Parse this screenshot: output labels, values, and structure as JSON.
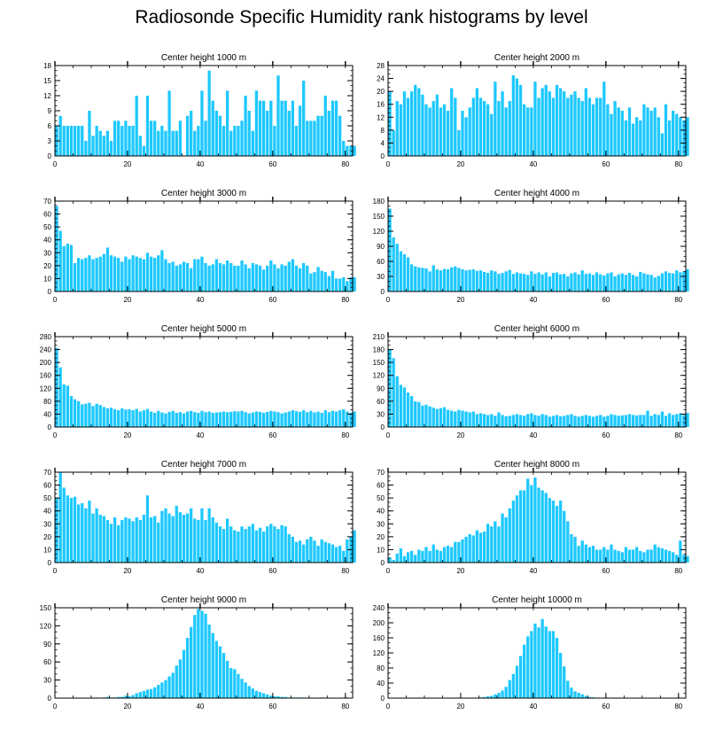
{
  "title": "Radiosonde Specific Humidity rank histograms by level",
  "colors": {
    "bar": "#1ec8ff",
    "axis": "#000000"
  },
  "chart_data": [
    {
      "type": "bar",
      "title": "Center height 1000 m",
      "xlim": [
        0,
        82
      ],
      "ylim": [
        0,
        18
      ],
      "yticks": [
        0,
        3,
        6,
        9,
        12,
        15,
        18
      ],
      "xticks": [
        0,
        20,
        40,
        60,
        80
      ],
      "values": [
        6,
        8,
        6,
        6,
        6,
        6,
        6,
        6,
        3,
        9,
        4,
        6,
        5,
        4,
        5,
        3,
        7,
        7,
        6,
        7,
        6,
        6,
        12,
        4,
        2,
        12,
        7,
        7,
        5,
        6,
        5,
        13,
        5,
        5,
        7,
        0,
        8,
        9,
        5,
        6,
        13,
        7,
        17,
        11,
        9,
        8,
        6,
        13,
        5,
        6,
        6,
        7,
        12,
        9,
        5,
        13,
        11,
        11,
        9,
        11,
        6,
        16,
        11,
        11,
        9,
        11,
        6,
        10,
        15,
        7,
        7,
        7,
        8,
        8,
        12,
        9,
        11,
        11,
        8,
        3,
        2,
        2,
        2
      ]
    },
    {
      "type": "bar",
      "title": "Center height 2000 m",
      "xlim": [
        0,
        82
      ],
      "ylim": [
        0,
        28
      ],
      "yticks": [
        0,
        4,
        8,
        12,
        16,
        20,
        24,
        28
      ],
      "xticks": [
        0,
        20,
        40,
        60,
        80
      ],
      "values": [
        20,
        8,
        17,
        16,
        20,
        18,
        20,
        22,
        21,
        19,
        16,
        15,
        17,
        19,
        15,
        16,
        14,
        21,
        18,
        8,
        14,
        12,
        15,
        18,
        21,
        18,
        17,
        16,
        13,
        23,
        17,
        20,
        15,
        17,
        25,
        24,
        22,
        16,
        15,
        15,
        23,
        18,
        21,
        22,
        20,
        18,
        22,
        21,
        20,
        18,
        19,
        20,
        18,
        17,
        21,
        18,
        16,
        18,
        18,
        23,
        16,
        13,
        17,
        15,
        14,
        11,
        15,
        10,
        12,
        11,
        16,
        15,
        14,
        15,
        12,
        7,
        16,
        11,
        14,
        13,
        12,
        11,
        12
      ]
    },
    {
      "type": "bar",
      "title": "Center height 3000 m",
      "xlim": [
        0,
        82
      ],
      "ylim": [
        0,
        70
      ],
      "yticks": [
        0,
        10,
        20,
        30,
        40,
        50,
        60,
        70
      ],
      "xticks": [
        0,
        20,
        40,
        60,
        80
      ],
      "values": [
        66,
        47,
        35,
        37,
        36,
        22,
        26,
        25,
        26,
        28,
        25,
        26,
        27,
        29,
        34,
        28,
        27,
        26,
        23,
        27,
        25,
        28,
        27,
        26,
        25,
        30,
        27,
        26,
        28,
        32,
        25,
        22,
        23,
        20,
        21,
        23,
        22,
        18,
        25,
        25,
        27,
        22,
        20,
        21,
        25,
        22,
        21,
        24,
        22,
        20,
        20,
        24,
        21,
        18,
        22,
        21,
        20,
        17,
        20,
        24,
        21,
        18,
        21,
        20,
        23,
        25,
        20,
        18,
        22,
        20,
        14,
        15,
        19,
        16,
        15,
        12,
        16,
        10,
        10,
        11,
        8,
        11,
        11
      ]
    },
    {
      "type": "bar",
      "title": "Center height 4000 m",
      "xlim": [
        0,
        82
      ],
      "ylim": [
        0,
        180
      ],
      "yticks": [
        0,
        30,
        60,
        90,
        120,
        150,
        180
      ],
      "xticks": [
        0,
        20,
        40,
        60,
        80
      ],
      "values": [
        165,
        108,
        95,
        80,
        74,
        68,
        54,
        50,
        48,
        47,
        46,
        40,
        52,
        44,
        42,
        45,
        44,
        48,
        50,
        47,
        44,
        42,
        43,
        44,
        41,
        42,
        39,
        37,
        42,
        40,
        35,
        37,
        40,
        43,
        35,
        38,
        36,
        35,
        33,
        40,
        35,
        38,
        34,
        38,
        30,
        37,
        38,
        34,
        35,
        30,
        36,
        38,
        34,
        42,
        35,
        36,
        33,
        38,
        34,
        32,
        36,
        38,
        30,
        34,
        36,
        33,
        37,
        33,
        30,
        39,
        36,
        34,
        33,
        28,
        31,
        36,
        40,
        37,
        36,
        42,
        38,
        40,
        44
      ]
    },
    {
      "type": "bar",
      "title": "Center height 5000 m",
      "xlim": [
        0,
        82
      ],
      "ylim": [
        0,
        280
      ],
      "yticks": [
        0,
        40,
        80,
        120,
        160,
        200,
        240,
        280
      ],
      "xticks": [
        0,
        20,
        40,
        60,
        80
      ],
      "values": [
        245,
        185,
        132,
        128,
        96,
        86,
        80,
        70,
        72,
        75,
        65,
        72,
        68,
        62,
        58,
        60,
        55,
        52,
        58,
        54,
        55,
        52,
        56,
        48,
        52,
        56,
        48,
        44,
        50,
        45,
        42,
        47,
        50,
        44,
        46,
        42,
        48,
        50,
        46,
        44,
        50,
        46,
        48,
        44,
        45,
        46,
        48,
        46,
        47,
        49,
        48,
        50,
        46,
        42,
        45,
        48,
        47,
        44,
        47,
        50,
        48,
        46,
        42,
        45,
        48,
        52,
        49,
        47,
        52,
        46,
        50,
        45,
        48,
        44,
        52,
        46,
        50,
        48,
        52,
        55,
        48,
        44,
        48
      ]
    },
    {
      "type": "bar",
      "title": "Center height 6000 m",
      "xlim": [
        0,
        82
      ],
      "ylim": [
        0,
        210
      ],
      "yticks": [
        0,
        30,
        60,
        90,
        120,
        150,
        180,
        210
      ],
      "xticks": [
        0,
        20,
        40,
        60,
        80
      ],
      "values": [
        180,
        160,
        118,
        98,
        92,
        80,
        72,
        60,
        58,
        50,
        52,
        48,
        45,
        42,
        44,
        46,
        40,
        38,
        36,
        40,
        38,
        36,
        34,
        36,
        30,
        32,
        30,
        28,
        30,
        26,
        34,
        28,
        25,
        26,
        28,
        30,
        28,
        26,
        30,
        32,
        28,
        26,
        30,
        28,
        24,
        26,
        28,
        25,
        26,
        28,
        30,
        26,
        24,
        26,
        28,
        26,
        24,
        26,
        28,
        24,
        26,
        30,
        28,
        26,
        27,
        28,
        30,
        28,
        27,
        28,
        28,
        38,
        26,
        30,
        28,
        36,
        26,
        32,
        28,
        30,
        32,
        28,
        33
      ]
    },
    {
      "type": "bar",
      "title": "Center height 7000 m",
      "xlim": [
        0,
        82
      ],
      "ylim": [
        0,
        70
      ],
      "yticks": [
        0,
        10,
        20,
        30,
        40,
        50,
        60,
        70
      ],
      "xticks": [
        0,
        20,
        40,
        60,
        80
      ],
      "values": [
        50,
        70,
        58,
        52,
        50,
        51,
        45,
        46,
        42,
        48,
        38,
        42,
        37,
        36,
        33,
        30,
        35,
        29,
        33,
        35,
        34,
        32,
        35,
        33,
        37,
        52,
        35,
        36,
        31,
        40,
        42,
        38,
        36,
        44,
        39,
        37,
        38,
        42,
        34,
        33,
        42,
        33,
        42,
        35,
        31,
        28,
        26,
        34,
        28,
        25,
        24,
        28,
        26,
        28,
        30,
        25,
        27,
        24,
        28,
        30,
        28,
        26,
        29,
        28,
        22,
        20,
        16,
        17,
        14,
        18,
        20,
        17,
        13,
        18,
        16,
        15,
        14,
        12,
        13,
        9,
        18,
        20,
        25
      ]
    },
    {
      "type": "bar",
      "title": "Center height 8000 m",
      "xlim": [
        0,
        82
      ],
      "ylim": [
        0,
        70
      ],
      "yticks": [
        0,
        10,
        20,
        30,
        40,
        50,
        60,
        70
      ],
      "xticks": [
        0,
        20,
        40,
        60,
        80
      ],
      "values": [
        4,
        2,
        7,
        11,
        5,
        8,
        9,
        6,
        10,
        9,
        12,
        9,
        14,
        10,
        9,
        12,
        13,
        12,
        16,
        16,
        18,
        20,
        22,
        21,
        25,
        23,
        24,
        30,
        28,
        32,
        28,
        38,
        35,
        42,
        48,
        52,
        56,
        56,
        65,
        60,
        66,
        58,
        56,
        54,
        50,
        48,
        44,
        48,
        40,
        32,
        22,
        20,
        13,
        17,
        14,
        12,
        13,
        10,
        10,
        12,
        10,
        14,
        10,
        9,
        8,
        12,
        10,
        10,
        12,
        9,
        8,
        10,
        10,
        14,
        12,
        11,
        10,
        9,
        8,
        6,
        17,
        6,
        5
      ]
    },
    {
      "type": "bar",
      "title": "Center height 9000 m",
      "xlim": [
        0,
        82
      ],
      "ylim": [
        0,
        150
      ],
      "yticks": [
        0,
        30,
        60,
        90,
        120,
        150
      ],
      "xticks": [
        0,
        20,
        40,
        60,
        80
      ],
      "values": [
        0,
        0,
        0,
        0,
        0,
        0,
        0,
        0,
        0,
        0,
        0,
        1,
        0,
        1,
        2,
        1,
        1,
        2,
        2,
        4,
        3,
        5,
        8,
        10,
        12,
        14,
        15,
        18,
        22,
        26,
        30,
        36,
        42,
        54,
        64,
        80,
        100,
        118,
        138,
        148,
        145,
        140,
        122,
        108,
        95,
        86,
        75,
        62,
        50,
        48,
        40,
        32,
        26,
        20,
        16,
        12,
        10,
        8,
        6,
        4,
        3,
        3,
        2,
        2,
        1,
        1,
        1,
        1,
        1,
        0,
        0,
        0,
        0,
        1,
        0,
        0,
        0,
        0,
        0,
        0,
        1,
        0,
        0
      ]
    },
    {
      "type": "bar",
      "title": "Center height 10000 m",
      "xlim": [
        0,
        82
      ],
      "ylim": [
        0,
        240
      ],
      "yticks": [
        0,
        40,
        80,
        120,
        160,
        200,
        240
      ],
      "xticks": [
        0,
        20,
        40,
        60,
        80
      ],
      "values": [
        0,
        0,
        0,
        0,
        0,
        0,
        0,
        0,
        0,
        0,
        0,
        0,
        0,
        0,
        0,
        0,
        0,
        0,
        0,
        0,
        0,
        0,
        0,
        0,
        0,
        2,
        3,
        5,
        6,
        10,
        14,
        20,
        30,
        48,
        64,
        86,
        112,
        142,
        164,
        178,
        198,
        188,
        210,
        190,
        178,
        178,
        160,
        120,
        84,
        46,
        28,
        18,
        14,
        10,
        6,
        3,
        2,
        1,
        1,
        0,
        0,
        0,
        0,
        0,
        0,
        0,
        0,
        0,
        0,
        0,
        0,
        0,
        0,
        0,
        0,
        0,
        0,
        0,
        0,
        0,
        0,
        0,
        0
      ]
    }
  ]
}
